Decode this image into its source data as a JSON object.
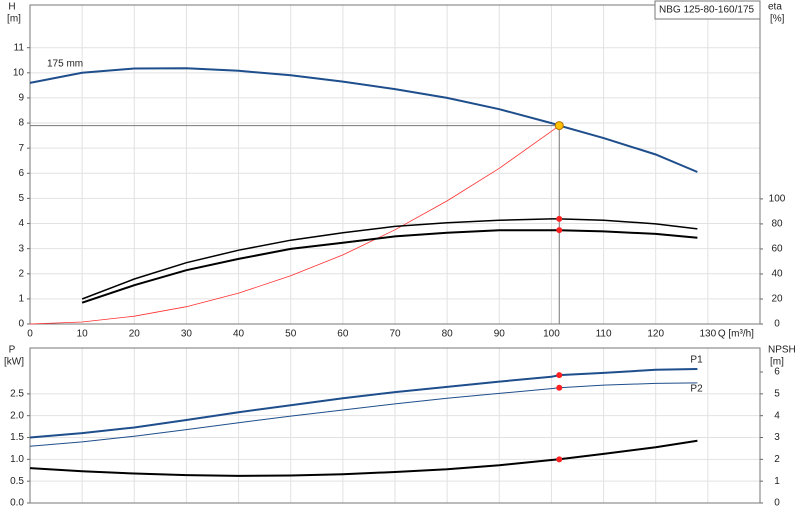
{
  "chart_data": [
    {
      "type": "line",
      "title": "NBG 125-80-160/175",
      "y_label": "H",
      "y_unit": "[m]",
      "y2_label": "eta",
      "y2_unit": "[%]",
      "x_label": "Q [m³/h]",
      "x": [
        0,
        10,
        20,
        30,
        40,
        50,
        60,
        70,
        80,
        90,
        100,
        101.5,
        110,
        120,
        128
      ],
      "xlim": [
        0,
        140
      ],
      "xticks": [
        0,
        10,
        20,
        30,
        40,
        50,
        60,
        70,
        80,
        90,
        100,
        110,
        120,
        130
      ],
      "ylim": [
        0,
        12.7
      ],
      "yticks": [
        0,
        1,
        2,
        3,
        4,
        5,
        6,
        7,
        8,
        9,
        10,
        11
      ],
      "y2lim": [
        0,
        255
      ],
      "y2ticks": [
        0,
        20,
        40,
        60,
        80,
        100
      ],
      "grid": true,
      "duty_point": {
        "x": 101.5,
        "y": 7.9
      },
      "marker_color": "#ff2020",
      "series": [
        {
          "name": "175 mm",
          "color": "#1f4e8c",
          "width": 2,
          "values": [
            9.6,
            10.0,
            10.17,
            10.18,
            10.08,
            9.9,
            9.65,
            9.35,
            9.0,
            8.55,
            8.0,
            7.9,
            7.4,
            6.75,
            6.05
          ]
        },
        {
          "color": "#ff3030",
          "width": 0.8,
          "values": [
            0,
            0.08,
            0.31,
            0.69,
            1.23,
            1.92,
            2.75,
            3.75,
            4.9,
            6.2,
            7.67,
            7.9,
            null,
            null,
            null
          ]
        },
        {
          "color": "#000000",
          "width": 1.5,
          "axis": "y2",
          "marker": true,
          "values": [
            null,
            20,
            36,
            49,
            59,
            67,
            73,
            78,
            81,
            83,
            84,
            84,
            83,
            80,
            76
          ]
        },
        {
          "color": "#000000",
          "width": 2,
          "axis": "y2",
          "marker": true,
          "values": [
            null,
            17,
            31,
            43,
            52,
            60,
            65,
            70,
            73,
            75,
            75,
            75,
            74,
            72,
            69
          ]
        }
      ]
    },
    {
      "type": "line",
      "y_label": "P",
      "y_unit": "[kW]",
      "y2_label": "NPSH",
      "y2_unit": "[m]",
      "x": [
        0,
        10,
        20,
        30,
        40,
        50,
        60,
        70,
        80,
        90,
        100,
        101.5,
        110,
        120,
        128
      ],
      "xlim": [
        0,
        140
      ],
      "ylim": [
        0,
        3.55
      ],
      "yticks": [
        {
          "value": 0,
          "label": "0.0"
        },
        0.5,
        {
          "value": 1,
          "label": "1.0"
        },
        1.5,
        {
          "value": 2,
          "label": "2.0"
        },
        2.5
      ],
      "y2lim": [
        0,
        7.1
      ],
      "y2ticks": [
        0,
        1,
        2,
        3,
        4,
        5,
        6
      ],
      "grid": true,
      "duty_point": {
        "x": 101.5
      },
      "marker_color": "#ff2020",
      "series": [
        {
          "name": "P1",
          "color": "#1f4e8c",
          "width": 2,
          "marker": true,
          "values": [
            1.5,
            1.6,
            1.73,
            1.9,
            2.08,
            2.24,
            2.4,
            2.54,
            2.66,
            2.78,
            2.89,
            2.93,
            2.98,
            3.05,
            3.07
          ]
        },
        {
          "name": "P2",
          "color": "#1f4e8c",
          "width": 1,
          "marker": true,
          "values": [
            1.3,
            1.4,
            1.53,
            1.68,
            1.84,
            1.99,
            2.13,
            2.27,
            2.4,
            2.51,
            2.62,
            2.64,
            2.7,
            2.74,
            2.75
          ]
        },
        {
          "color": "#000000",
          "width": 2,
          "axis": "y2",
          "marker": true,
          "values": [
            1.6,
            1.45,
            1.35,
            1.28,
            1.24,
            1.26,
            1.32,
            1.42,
            1.55,
            1.73,
            1.97,
            2.0,
            2.25,
            2.55,
            2.85
          ]
        }
      ]
    }
  ]
}
